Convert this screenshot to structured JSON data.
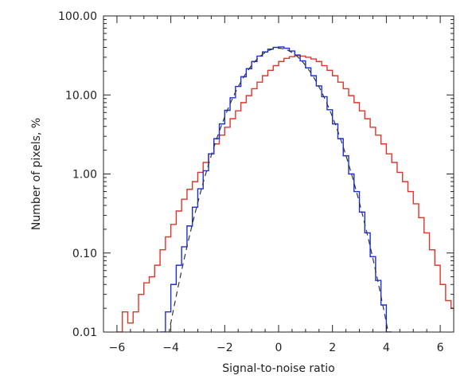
{
  "chart_data": {
    "type": "line",
    "title": "",
    "xlabel": "Signal-to-noise ratio",
    "ylabel": "Number of pixels, %",
    "xlim": [
      -6.5,
      6.5
    ],
    "ylim": [
      0.01,
      100
    ],
    "yscale": "log",
    "grid": false,
    "legend": "none",
    "x_ticks": [
      -6,
      -4,
      -2,
      0,
      2,
      4,
      6
    ],
    "x_tick_labels": [
      "−6",
      "−4",
      "−2",
      "0",
      "2",
      "4",
      "6"
    ],
    "y_ticks": [
      0.01,
      0.1,
      1,
      10,
      100
    ],
    "y_tick_labels": [
      "0.01",
      "0.10",
      "1.00",
      "10.00",
      "100.00"
    ],
    "bin_width": 0.2,
    "series": [
      {
        "color": "#e0352b",
        "style": "steps",
        "x_start": -6.0,
        "values": [
          0.01,
          0.018,
          0.013,
          0.018,
          0.03,
          0.042,
          0.05,
          0.07,
          0.11,
          0.16,
          0.23,
          0.34,
          0.48,
          0.64,
          0.8,
          1.05,
          1.4,
          1.8,
          2.4,
          3.1,
          3.9,
          5.0,
          6.3,
          8.0,
          9.8,
          12.0,
          14.5,
          17.5,
          20.5,
          23.5,
          26.5,
          29.0,
          30.5,
          31.5,
          31.0,
          30.0,
          28.5,
          26.5,
          23.5,
          20.5,
          17.5,
          14.5,
          12.0,
          9.8,
          8.0,
          6.3,
          5.0,
          3.9,
          3.1,
          2.4,
          1.8,
          1.4,
          1.05,
          0.8,
          0.6,
          0.42,
          0.28,
          0.18,
          0.11,
          0.07,
          0.04,
          0.025,
          0.02,
          0.012,
          0.007
        ]
      },
      {
        "color": "#1a2fd6",
        "style": "steps",
        "x_start": -4.4,
        "values": [
          0.008,
          0.018,
          0.04,
          0.07,
          0.12,
          0.22,
          0.38,
          0.65,
          1.1,
          1.8,
          2.8,
          4.3,
          6.4,
          9.2,
          12.8,
          17.0,
          21.5,
          26.5,
          31.0,
          35.0,
          38.0,
          40.0,
          40.5,
          39.0,
          36.0,
          32.0,
          27.0,
          22.0,
          17.5,
          13.0,
          9.5,
          6.5,
          4.3,
          2.8,
          1.7,
          1.0,
          0.6,
          0.33,
          0.18,
          0.09,
          0.045,
          0.022,
          0.007
        ]
      },
      {
        "color": "#333333",
        "style": "dashed-gaussian",
        "amplitude": 39.0,
        "center": 0.0,
        "sigma": 1.0,
        "x_range": [
          -4.15,
          4.15
        ]
      }
    ]
  }
}
